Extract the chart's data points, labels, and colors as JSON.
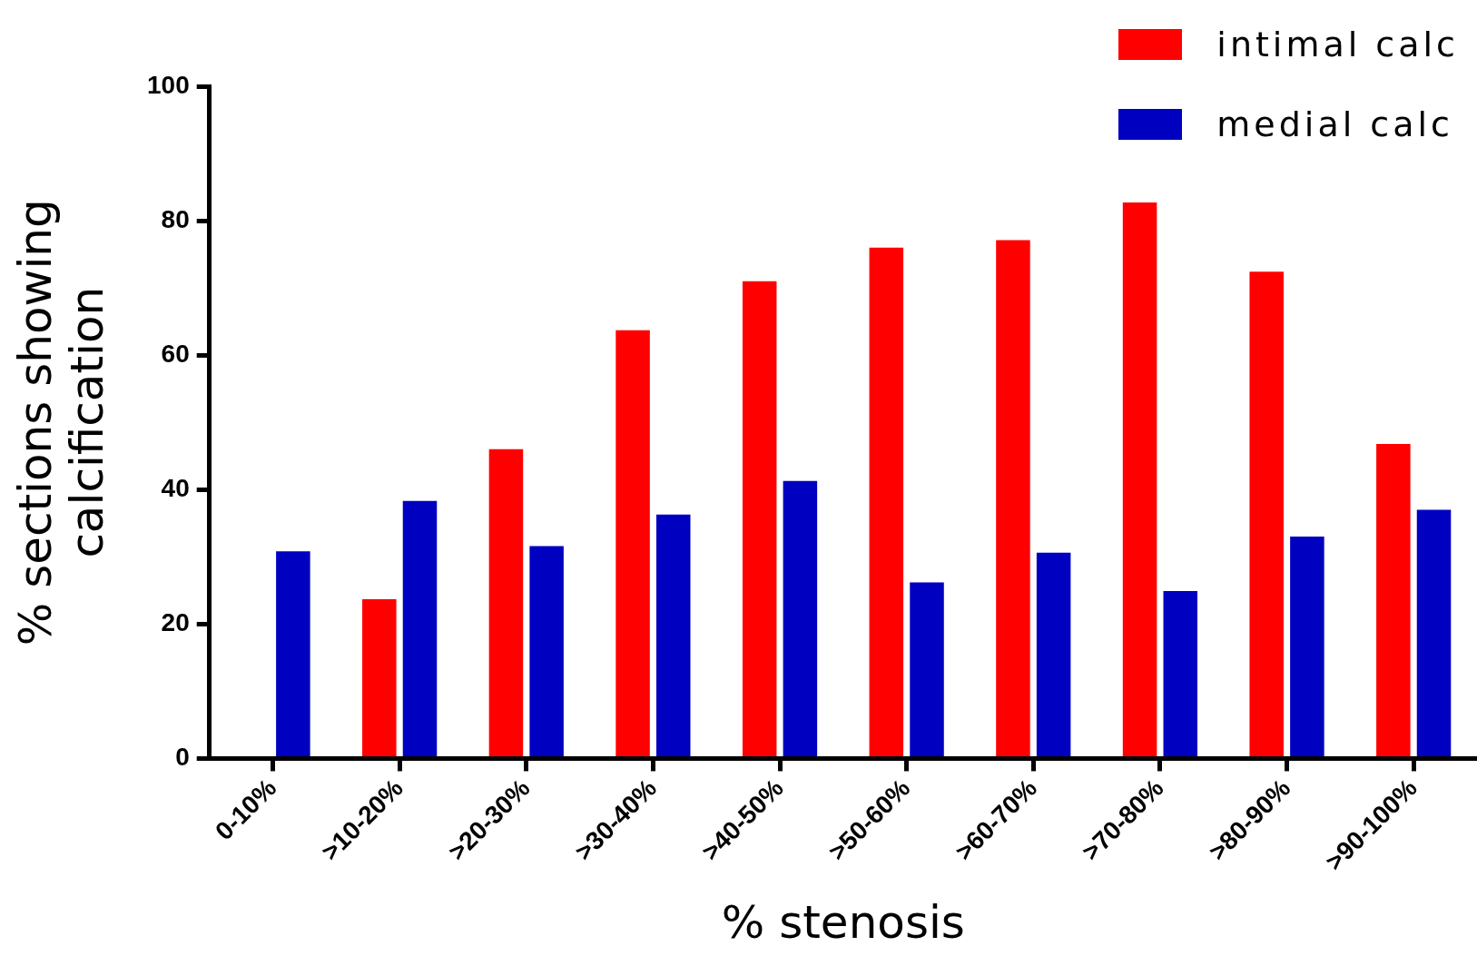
{
  "chart_data": {
    "type": "bar",
    "xlabel": "% stenosis",
    "ylabel": "% sections showing\ncalcification",
    "categories": [
      "0-10%",
      ">10-20%",
      ">20-30%",
      ">30-40%",
      ">40-50%",
      ">50-60%",
      ">60-70%",
      ">70-80%",
      ">80-90%",
      ">90-100%"
    ],
    "series": [
      {
        "name": "intimal calc",
        "color": "#ff0000",
        "values": [
          0,
          23.7,
          46.0,
          63.7,
          71.0,
          76.0,
          77.1,
          82.7,
          72.4,
          46.8
        ]
      },
      {
        "name": "medial calc",
        "color": "#0000c0",
        "values": [
          30.8,
          38.3,
          31.6,
          36.3,
          41.3,
          26.2,
          30.6,
          24.9,
          33.0,
          37.0
        ]
      }
    ],
    "ylim": [
      0,
      100
    ],
    "yticks": [
      0,
      20,
      40,
      60,
      80,
      100
    ],
    "grid": false,
    "legend": "top right"
  }
}
